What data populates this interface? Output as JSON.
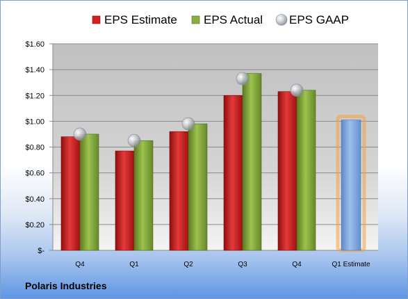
{
  "company": "Polaris Industries",
  "chart_data": {
    "type": "bar",
    "categories": [
      "Q4",
      "Q1",
      "Q2",
      "Q3",
      "Q4",
      "Q1 Estimate"
    ],
    "series": [
      {
        "name": "EPS Estimate",
        "kind": "bar",
        "color": "#d42020",
        "values": [
          0.88,
          0.77,
          0.92,
          1.2,
          1.23,
          null
        ]
      },
      {
        "name": "EPS Actual",
        "kind": "bar",
        "color": "#8cb040",
        "values": [
          0.9,
          0.85,
          0.98,
          1.37,
          1.24,
          null
        ]
      },
      {
        "name": "EPS GAAP",
        "kind": "marker",
        "color": "#b8bcc4",
        "values": [
          0.9,
          0.85,
          0.98,
          1.33,
          1.24,
          null
        ]
      }
    ],
    "forecast": {
      "category": "Q1 Estimate",
      "value": 1.01,
      "color": "#7fa8dc",
      "glow": "#f5a040"
    },
    "y_ticks": [
      {
        "value": 0,
        "label": "$-"
      },
      {
        "value": 0.2,
        "label": "$0.20"
      },
      {
        "value": 0.4,
        "label": "$0.40"
      },
      {
        "value": 0.6,
        "label": "$0.60"
      },
      {
        "value": 0.8,
        "label": "$0.80"
      },
      {
        "value": 1.0,
        "label": "$1.00"
      },
      {
        "value": 1.2,
        "label": "$1.20"
      },
      {
        "value": 1.4,
        "label": "$1.40"
      },
      {
        "value": 1.6,
        "label": "$1.60"
      }
    ],
    "ylim": [
      0,
      1.6
    ],
    "grid": true,
    "legend_position": "top"
  }
}
